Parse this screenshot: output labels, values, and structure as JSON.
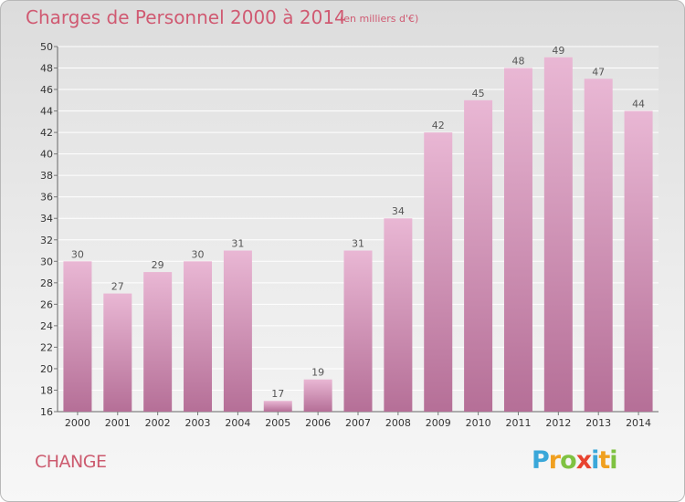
{
  "header": {
    "title": "Charges de Personnel 2000 à 2014",
    "subtitle": "(en milliers d'€)"
  },
  "footer": {
    "commune": "CHANGE",
    "logo_letters": [
      "P",
      "r",
      "o",
      "x",
      "i",
      "t",
      "i"
    ],
    "logo_colors": [
      "#3aa7d9",
      "#f0a020",
      "#7fc241",
      "#e8432f",
      "#3aa7d9",
      "#f0a020",
      "#7fc241"
    ]
  },
  "chart_data": {
    "type": "bar",
    "categories": [
      "2000",
      "2001",
      "2002",
      "2003",
      "2004",
      "2005",
      "2006",
      "2007",
      "2008",
      "2009",
      "2010",
      "2011",
      "2012",
      "2013",
      "2014"
    ],
    "values": [
      30,
      27,
      29,
      30,
      31,
      17,
      19,
      31,
      34,
      42,
      45,
      48,
      49,
      47,
      44
    ],
    "ylim": [
      16,
      50
    ],
    "ytick_step": 2,
    "grid": true,
    "bar_color_light": "#e9b7d4",
    "bar_color_dark": "#b56f97",
    "label_color": "#555555"
  }
}
